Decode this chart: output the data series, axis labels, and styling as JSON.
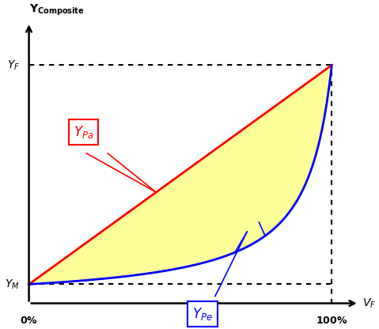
{
  "YM": 0.08,
  "YF": 1.0,
  "fill_color": "#FFFF99",
  "line_parallel_color": "#FF0000",
  "line_series_color": "#0000FF",
  "dotted_color": "#000000",
  "ylabel": "Y_{Composite}",
  "xlabel": "V_F",
  "ym_label": "Y_M",
  "yf_label": "Y_F",
  "x0_label": "0%",
  "x1_label": "100%",
  "ypa_label": "Y_{Pa}",
  "ype_label": "Y_{Pe}",
  "line_lw": 2.0,
  "dot_lw": 1.5
}
